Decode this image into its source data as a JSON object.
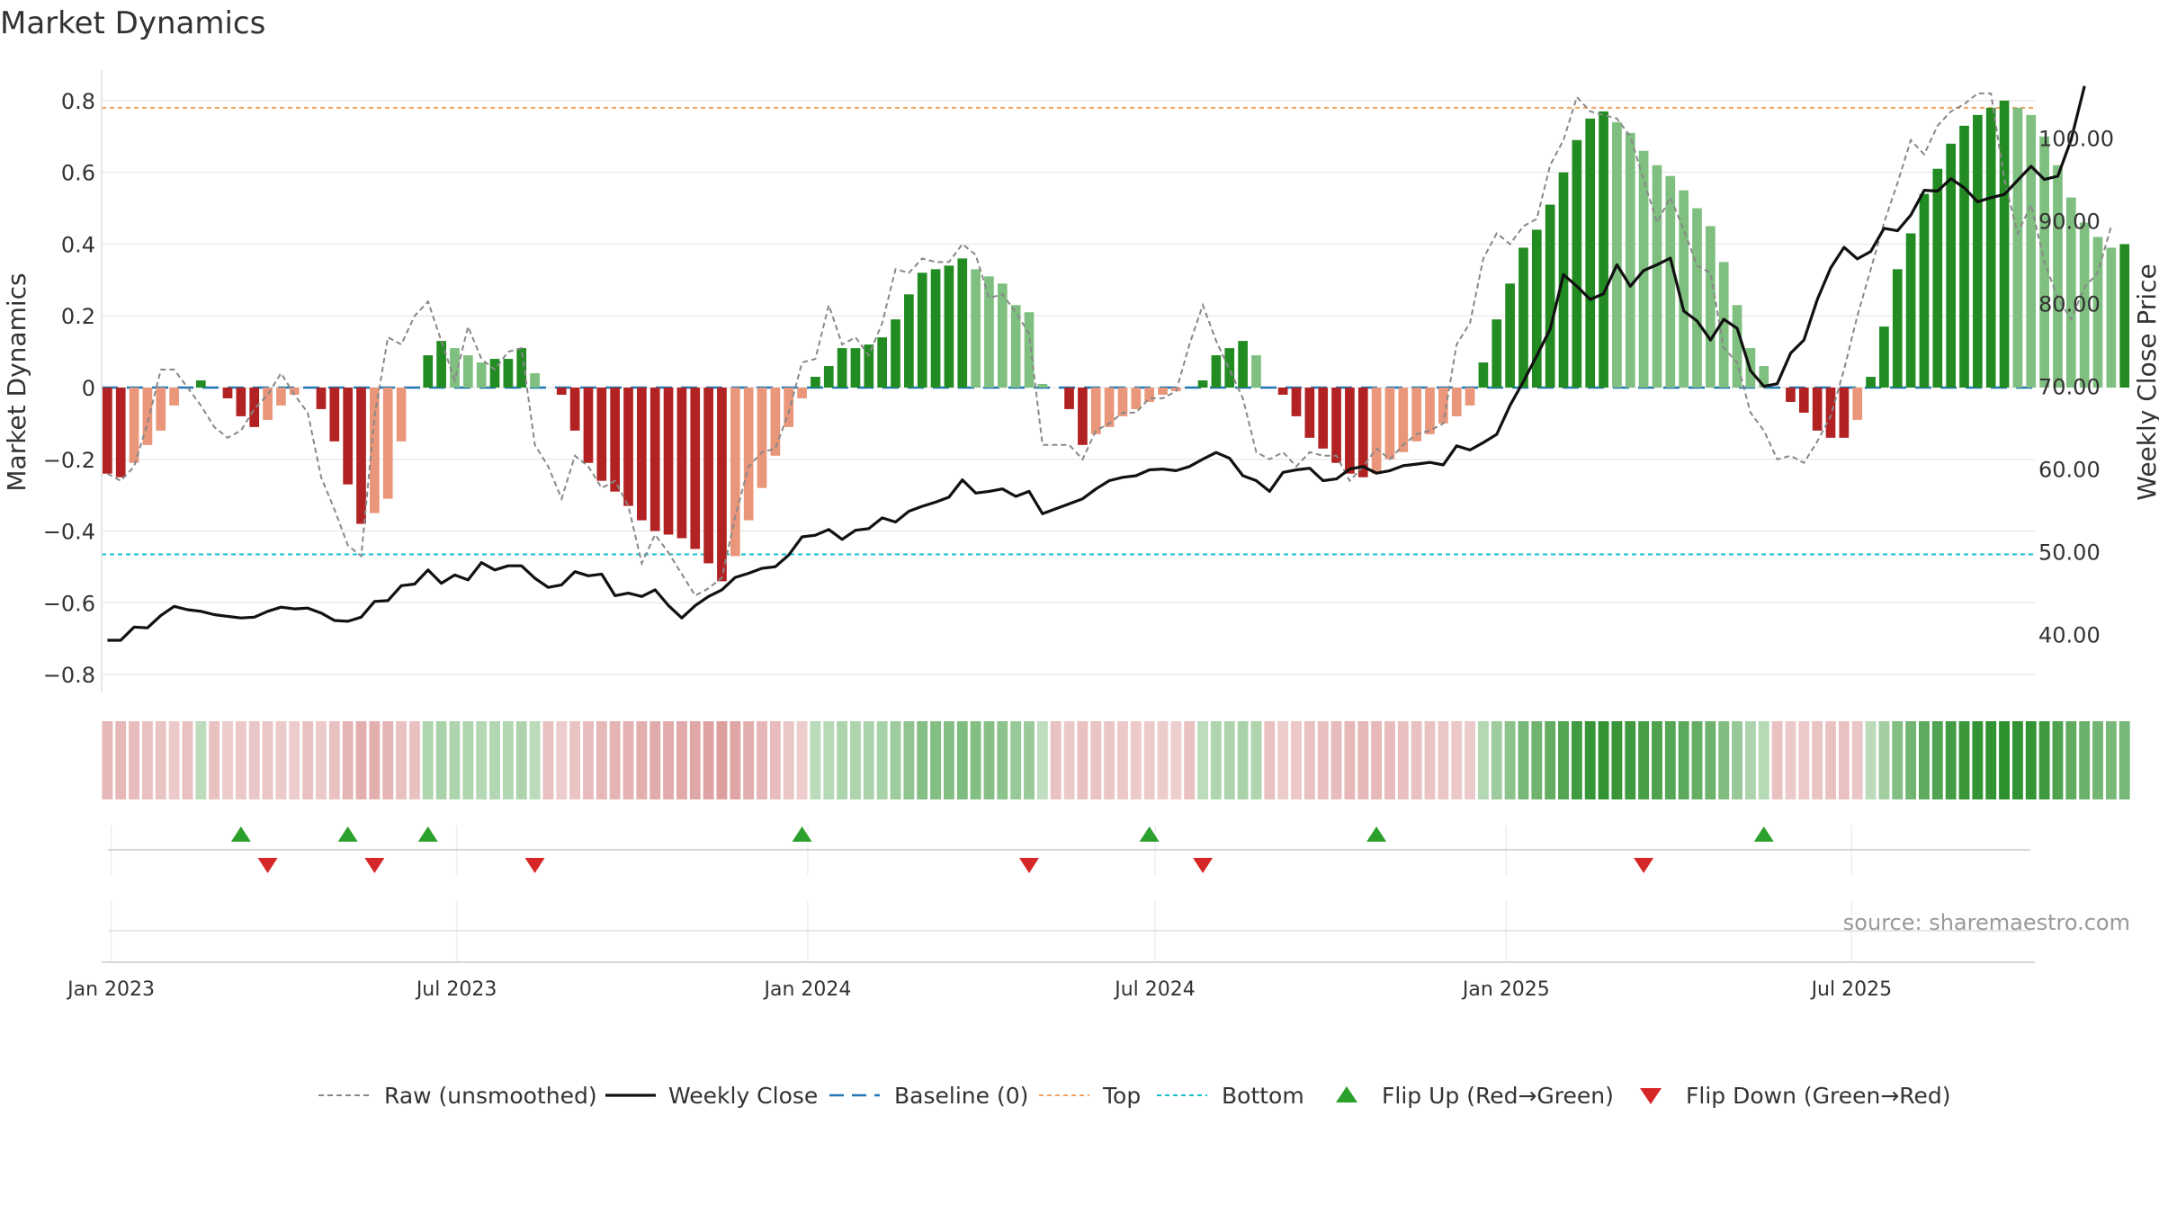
{
  "chart_data": {
    "type": "bar",
    "title": "Market Dynamics",
    "ylabel_left": "Market Dynamics",
    "ylabel_right": "Weekly Close Price",
    "ylim_left": [
      -0.85,
      0.88
    ],
    "ylim_right": [
      33.0,
      108.0
    ],
    "yticks_left": [
      -0.8,
      -0.6,
      -0.4,
      -0.2,
      0,
      0.2,
      0.4,
      0.6,
      0.8
    ],
    "yticks_left_labels": [
      "−0.8",
      "−0.6",
      "−0.4",
      "−0.2",
      "0",
      "0.2",
      "0.4",
      "0.6",
      "0.8"
    ],
    "yticks_right": [
      40,
      50,
      60,
      70,
      80,
      90,
      100
    ],
    "yticks_right_labels": [
      "40.00",
      "50.00",
      "60.00",
      "70.00",
      "80.00",
      "90.00",
      "100.00"
    ],
    "x_start": "2022-12-27",
    "x_end": "2025-10-05",
    "xticks": [
      "2023-01-01",
      "2023-07-01",
      "2024-01-01",
      "2024-07-01",
      "2025-01-01",
      "2025-07-01"
    ],
    "xtick_labels": [
      "Jan 2023",
      "Jul 2023",
      "Jan 2024",
      "Jul 2024",
      "Jan 2025",
      "Jul 2025"
    ],
    "first_week": "2022-12-30",
    "top_line": 0.78,
    "bottom_line": -0.465,
    "grid": true,
    "colors": {
      "strong_green": "#228b22",
      "weak_green": "#7fbf7f",
      "strong_red": "#b22222",
      "weak_red": "#e9967a",
      "raw": "#888888",
      "close": "#111111",
      "baseline": "#1f77b4",
      "top": "#f4a261",
      "bottom": "#17becf",
      "flip_up": "#2ca02c",
      "flip_down": "#d62728"
    },
    "series": [
      {
        "name": "Market Dynamics",
        "values": [
          -0.24,
          -0.25,
          -0.21,
          -0.16,
          -0.12,
          -0.05,
          0.0,
          0.02,
          0.0,
          -0.03,
          -0.08,
          -0.11,
          -0.09,
          -0.05,
          -0.02,
          0.0,
          -0.06,
          -0.15,
          -0.27,
          -0.38,
          -0.35,
          -0.31,
          -0.15,
          0.0,
          0.09,
          0.13,
          0.11,
          0.09,
          0.07,
          0.08,
          0.08,
          0.11,
          0.04,
          0.0,
          -0.02,
          -0.12,
          -0.21,
          -0.26,
          -0.29,
          -0.33,
          -0.37,
          -0.4,
          -0.41,
          -0.42,
          -0.45,
          -0.49,
          -0.54,
          -0.47,
          -0.37,
          -0.28,
          -0.19,
          -0.11,
          -0.03,
          0.03,
          0.06,
          0.11,
          0.11,
          0.12,
          0.14,
          0.19,
          0.26,
          0.32,
          0.33,
          0.34,
          0.36,
          0.33,
          0.31,
          0.29,
          0.23,
          0.21,
          0.01,
          0.0,
          -0.06,
          -0.16,
          -0.13,
          -0.11,
          -0.08,
          -0.06,
          -0.04,
          -0.02,
          -0.01,
          0.0,
          0.02,
          0.09,
          0.11,
          0.13,
          0.09,
          0.0,
          -0.02,
          -0.08,
          -0.14,
          -0.17,
          -0.21,
          -0.24,
          -0.25,
          -0.24,
          -0.2,
          -0.18,
          -0.15,
          -0.13,
          -0.1,
          -0.08,
          -0.05,
          0.07,
          0.19,
          0.29,
          0.39,
          0.44,
          0.51,
          0.6,
          0.69,
          0.75,
          0.77,
          0.74,
          0.71,
          0.66,
          0.62,
          0.59,
          0.55,
          0.5,
          0.45,
          0.35,
          0.23,
          0.11,
          0.06,
          0.0,
          -0.04,
          -0.07,
          -0.12,
          -0.14,
          -0.14,
          -0.09,
          0.03,
          0.17,
          0.33,
          0.43,
          0.54,
          0.61,
          0.68,
          0.73,
          0.76,
          0.78,
          0.8,
          0.78,
          0.76,
          0.7,
          0.62,
          0.53,
          0.46,
          0.42,
          0.39,
          0.4
        ]
      },
      {
        "name": "Raw (unsmoothed)",
        "values": [
          -0.24,
          -0.26,
          -0.22,
          -0.1,
          0.05,
          0.05,
          0.0,
          -0.05,
          -0.11,
          -0.14,
          -0.12,
          -0.06,
          -0.02,
          0.04,
          -0.02,
          -0.07,
          -0.25,
          -0.34,
          -0.44,
          -0.47,
          -0.08,
          0.14,
          0.12,
          0.2,
          0.24,
          0.13,
          0.02,
          0.17,
          0.08,
          0.05,
          0.1,
          0.11,
          -0.16,
          -0.22,
          -0.31,
          -0.19,
          -0.22,
          -0.28,
          -0.26,
          -0.33,
          -0.49,
          -0.41,
          -0.46,
          -0.52,
          -0.58,
          -0.56,
          -0.53,
          -0.36,
          -0.22,
          -0.18,
          -0.17,
          -0.07,
          0.07,
          0.08,
          0.23,
          0.12,
          0.14,
          0.09,
          0.18,
          0.33,
          0.32,
          0.36,
          0.35,
          0.35,
          0.4,
          0.37,
          0.25,
          0.26,
          0.21,
          0.15,
          -0.16,
          -0.16,
          -0.16,
          -0.2,
          -0.12,
          -0.1,
          -0.07,
          -0.07,
          -0.03,
          -0.03,
          -0.01,
          0.12,
          0.23,
          0.13,
          0.05,
          -0.03,
          -0.18,
          -0.2,
          -0.18,
          -0.22,
          -0.18,
          -0.19,
          -0.19,
          -0.26,
          -0.22,
          -0.17,
          -0.2,
          -0.16,
          -0.13,
          -0.12,
          -0.1,
          0.12,
          0.18,
          0.36,
          0.43,
          0.4,
          0.45,
          0.47,
          0.62,
          0.69,
          0.81,
          0.77,
          0.76,
          0.75,
          0.7,
          0.58,
          0.46,
          0.53,
          0.44,
          0.34,
          0.32,
          0.11,
          0.07,
          -0.07,
          -0.12,
          -0.2,
          -0.19,
          -0.21,
          -0.15,
          -0.08,
          0.05,
          0.2,
          0.33,
          0.46,
          0.57,
          0.69,
          0.65,
          0.73,
          0.77,
          0.79,
          0.82,
          0.82,
          0.58,
          0.43,
          0.51,
          0.35,
          0.25,
          0.19,
          0.28,
          0.32,
          0.45
        ]
      },
      {
        "name": "Weekly Close",
        "values": [
          39.3,
          39.3,
          40.9,
          40.8,
          42.3,
          43.4,
          43.0,
          42.8,
          42.4,
          42.2,
          42.0,
          42.1,
          42.8,
          43.3,
          43.1,
          43.2,
          42.6,
          41.7,
          41.6,
          42.1,
          44.0,
          44.1,
          45.9,
          46.1,
          47.8,
          46.2,
          47.2,
          46.6,
          48.7,
          47.8,
          48.3,
          48.3,
          46.8,
          45.7,
          46.0,
          47.6,
          47.1,
          47.3,
          44.7,
          45.0,
          44.6,
          45.4,
          43.5,
          42.0,
          43.5,
          44.6,
          45.4,
          46.9,
          47.4,
          48.0,
          48.2,
          49.6,
          51.8,
          52.0,
          52.7,
          51.5,
          52.6,
          52.8,
          54.1,
          53.6,
          54.9,
          55.5,
          56.0,
          56.6,
          58.7,
          57.1,
          57.3,
          57.6,
          56.7,
          57.3,
          54.6,
          55.2,
          55.8,
          56.4,
          57.6,
          58.6,
          59.0,
          59.2,
          59.9,
          60.0,
          59.8,
          60.3,
          61.2,
          62.0,
          61.3,
          59.2,
          58.6,
          57.3,
          59.6,
          59.9,
          60.1,
          58.6,
          58.8,
          60.0,
          60.3,
          59.5,
          59.8,
          60.4,
          60.6,
          60.8,
          60.5,
          62.8,
          62.3,
          63.2,
          64.2,
          67.7,
          70.6,
          73.7,
          76.9,
          83.5,
          82.1,
          80.5,
          81.2,
          84.7,
          82.1,
          84.0,
          84.7,
          85.5,
          79.1,
          77.9,
          75.6,
          78.1,
          77.0,
          71.9,
          70.0,
          70.3,
          74.0,
          75.6,
          80.5,
          84.3,
          86.8,
          85.4,
          86.3,
          89.1,
          88.8,
          90.7,
          93.7,
          93.6,
          95.1,
          94.0,
          92.3,
          92.8,
          93.2,
          94.9,
          96.6,
          95.0,
          95.4,
          99.8,
          106.3
        ]
      },
      {
        "name": "Baseline (0)"
      },
      {
        "name": "Top"
      },
      {
        "name": "Bottom"
      },
      {
        "name": "Flip Up (Red→Green)",
        "dates": [
          "2023-03-10",
          "2023-05-05",
          "2023-06-16",
          "2023-12-29",
          "2024-06-28",
          "2024-10-25",
          "2025-05-16"
        ]
      },
      {
        "name": "Flip Down (Green→Red)",
        "dates": [
          "2023-03-24",
          "2023-05-19",
          "2023-08-11",
          "2024-04-26",
          "2024-07-26",
          "2025-03-14"
        ]
      }
    ]
  },
  "source_text": "source: sharemaestro.com"
}
